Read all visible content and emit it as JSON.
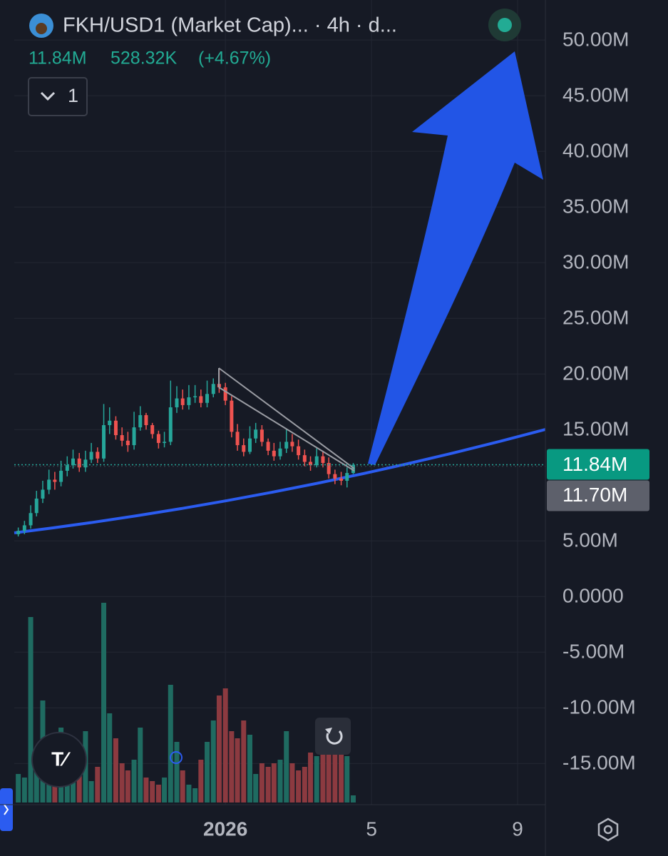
{
  "header": {
    "symbol": "FKH/USD1 (Market Cap)... · 4h · d...",
    "price": "11.84M",
    "change": "528.32K",
    "change_pct": "(+4.67%)",
    "indicator_count": "1"
  },
  "chart_data": {
    "type": "candlestick",
    "x": [
      -5.67,
      -5.5,
      -5.33,
      -5.17,
      -5,
      -4.83,
      -4.67,
      -4.5,
      -4.33,
      -4.17,
      -4,
      -3.83,
      -3.67,
      -3.5,
      -3.33,
      -3.17,
      -3,
      -2.83,
      -2.67,
      -2.5,
      -2.33,
      -2.17,
      -2,
      -1.83,
      -1.67,
      -1.5,
      -1.33,
      -1.17,
      -1,
      -0.83,
      -0.67,
      -0.5,
      -0.33,
      -0.17,
      0,
      0.17,
      0.33,
      0.5,
      0.67,
      0.83,
      1,
      1.17,
      1.33,
      1.5,
      1.67,
      1.83,
      2,
      2.17,
      2.33,
      2.5,
      2.67,
      2.83,
      3,
      3.17,
      3.33,
      3.5
    ],
    "open": [
      5.6,
      5.9,
      6.4,
      7.5,
      8.8,
      9.6,
      10.5,
      10.3,
      11.3,
      11.8,
      12.4,
      11.6,
      12.3,
      13.0,
      12.4,
      15.4,
      15.8,
      14.5,
      14.0,
      13.6,
      15.2,
      16.3,
      15.4,
      14.6,
      13.8,
      13.9,
      17.0,
      17.8,
      17.2,
      17.9,
      18.0,
      17.4,
      18.2,
      19.1,
      18.8,
      17.6,
      14.8,
      13.6,
      13.0,
      14.2,
      15.0,
      13.9,
      13.1,
      12.6,
      13.3,
      13.9,
      13.5,
      12.7,
      12.1,
      11.8,
      12.6,
      12.0,
      11.0,
      10.6,
      10.4,
      11.1
    ],
    "high": [
      6.2,
      6.8,
      8.2,
      9.5,
      10.4,
      11.4,
      11.2,
      12.2,
      12.6,
      13.2,
      12.9,
      13.1,
      13.8,
      13.4,
      17.3,
      17.0,
      16.2,
      15.2,
      14.8,
      16.6,
      17.1,
      16.5,
      15.6,
      14.9,
      14.8,
      19.4,
      18.9,
      18.6,
      19.0,
      19.0,
      18.6,
      19.4,
      19.6,
      20.5,
      19.2,
      18.0,
      15.5,
      14.2,
      15.3,
      15.6,
      15.4,
      14.2,
      13.8,
      13.9,
      15.0,
      14.6,
      14.1,
      13.2,
      12.6,
      13.4,
      13.1,
      12.5,
      11.4,
      11.2,
      11.6,
      12.0
    ],
    "low": [
      5.4,
      5.6,
      6.1,
      7.2,
      8.4,
      9.2,
      9.6,
      9.9,
      10.8,
      11.5,
      11.2,
      11.2,
      12.0,
      12.0,
      12.1,
      14.6,
      14.1,
      13.5,
      13.0,
      13.2,
      14.9,
      15.0,
      14.2,
      13.3,
      13.4,
      13.6,
      16.5,
      16.8,
      16.8,
      17.4,
      17.0,
      17.0,
      17.9,
      18.3,
      17.2,
      14.3,
      13.1,
      12.6,
      12.8,
      13.8,
      13.5,
      12.7,
      12.2,
      12.3,
      12.9,
      13.0,
      12.3,
      11.7,
      11.3,
      11.6,
      11.6,
      10.6,
      10.1,
      10.0,
      9.8,
      11.0
    ],
    "close": [
      5.9,
      6.4,
      7.5,
      8.8,
      9.6,
      10.5,
      10.3,
      11.3,
      11.8,
      12.4,
      11.6,
      12.3,
      13.0,
      12.4,
      15.4,
      15.8,
      14.5,
      14.0,
      13.6,
      15.2,
      16.3,
      15.4,
      14.6,
      13.8,
      13.9,
      17.0,
      17.8,
      17.2,
      17.9,
      18.0,
      17.4,
      18.2,
      19.1,
      18.8,
      17.6,
      14.8,
      13.6,
      13.0,
      14.2,
      15.0,
      13.9,
      13.1,
      12.6,
      13.3,
      13.9,
      13.5,
      12.7,
      12.1,
      11.8,
      12.6,
      12.0,
      11.0,
      10.6,
      10.4,
      11.1,
      11.84
    ],
    "volume": [
      40,
      35,
      260,
      60,
      143,
      95,
      70,
      105,
      60,
      80,
      65,
      100,
      30,
      50,
      280,
      125,
      90,
      55,
      45,
      60,
      105,
      35,
      30,
      25,
      35,
      165,
      85,
      45,
      25,
      20,
      60,
      85,
      115,
      150,
      160,
      100,
      90,
      115,
      95,
      40,
      55,
      50,
      55,
      60,
      100,
      55,
      45,
      50,
      70,
      65,
      70,
      70,
      90,
      70,
      65,
      10
    ],
    "up_color": "#26a69a",
    "down_color": "#ef5350",
    "volume_up_color": "#1f6b61",
    "volume_down_color": "#8c3a40",
    "ylim": [
      -18.7,
      53.6
    ],
    "yticks": [
      {
        "value": 50,
        "label": "50.00M"
      },
      {
        "value": 45,
        "label": "45.00M"
      },
      {
        "value": 40,
        "label": "40.00M"
      },
      {
        "value": 35,
        "label": "35.00M"
      },
      {
        "value": 30,
        "label": "30.00M"
      },
      {
        "value": 25,
        "label": "25.00M"
      },
      {
        "value": 20,
        "label": "20.00M"
      },
      {
        "value": 15,
        "label": "15.00M"
      },
      {
        "value": 5,
        "label": "5.00M"
      },
      {
        "value": 0,
        "label": "0.0000"
      },
      {
        "value": -5,
        "label": "-5.00M"
      },
      {
        "value": -10,
        "label": "-10.00M"
      },
      {
        "value": -15,
        "label": "-15.00M"
      }
    ],
    "xlim": [
      -5.78,
      8.76
    ],
    "xticks": [
      {
        "value": 0,
        "label": "2026"
      },
      {
        "value": 4,
        "label": "5"
      },
      {
        "value": 8,
        "label": "9"
      }
    ],
    "last_price": {
      "value": 11.84,
      "label": "11.84M"
    },
    "second_price": {
      "value": 11.7,
      "label": "11.70M"
    },
    "grid": true
  }
}
